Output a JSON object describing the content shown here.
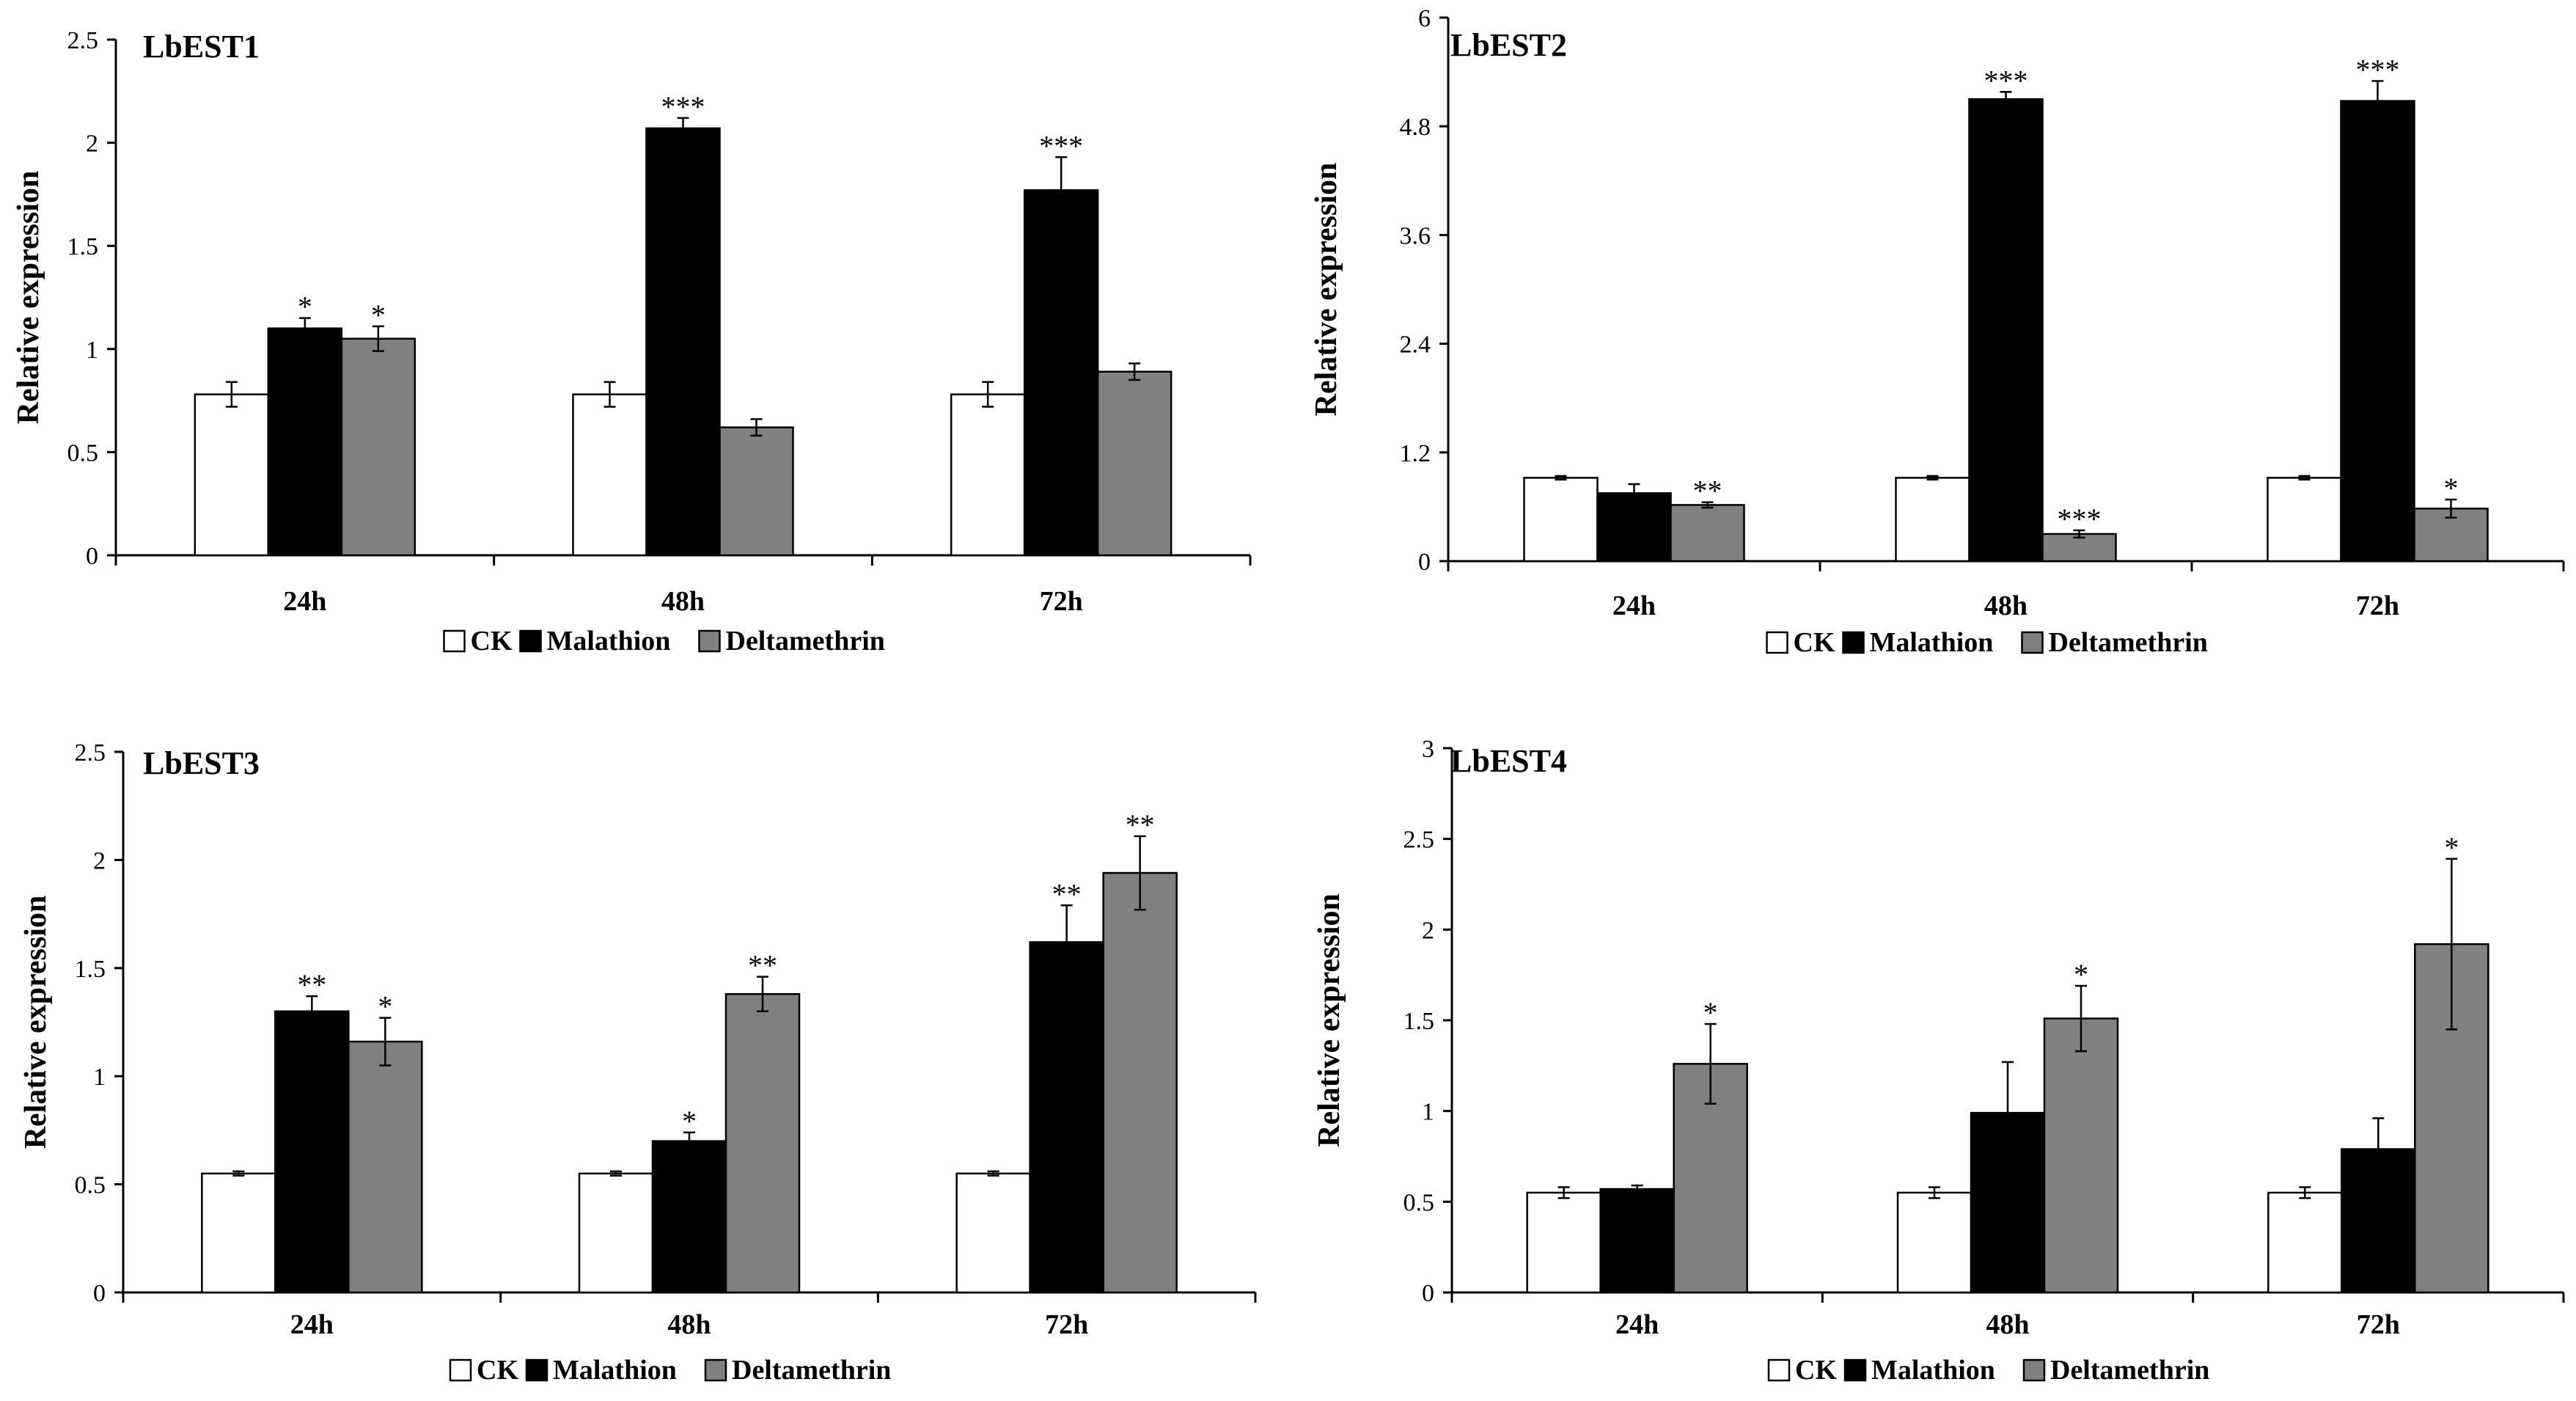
{
  "chart_data": [
    {
      "type": "bar",
      "title": "LbEST1",
      "ylabel": "Relative expression",
      "xlabel": "",
      "categories": [
        "24h",
        "48h",
        "72h"
      ],
      "ylim": [
        0,
        2.5
      ],
      "yticks": [
        "0",
        "0.5",
        "1",
        "1.5",
        "2",
        "2.5"
      ],
      "legend_position": "bottom",
      "series": [
        {
          "name": "CK",
          "color": "#ffffff",
          "values": [
            0.78,
            0.78,
            0.78
          ],
          "errors": [
            0.06,
            0.06,
            0.06
          ],
          "sig": [
            "",
            "",
            ""
          ]
        },
        {
          "name": "Malathion",
          "color": "#000000",
          "values": [
            1.1,
            2.07,
            1.77
          ],
          "errors": [
            0.05,
            0.05,
            0.16
          ],
          "sig": [
            "*",
            "***",
            "***"
          ]
        },
        {
          "name": "Deltamethrin",
          "color": "#808080",
          "values": [
            1.05,
            0.62,
            0.89
          ],
          "errors": [
            0.06,
            0.04,
            0.04
          ],
          "sig": [
            "*",
            "",
            ""
          ]
        }
      ]
    },
    {
      "type": "bar",
      "title": "LbEST2",
      "ylabel": "Relative expression",
      "xlabel": "",
      "categories": [
        "24h",
        "48h",
        "72h"
      ],
      "ylim": [
        0,
        6
      ],
      "yticks": [
        "0",
        "1.2",
        "2.4",
        "3.6",
        "4.8",
        "6"
      ],
      "legend_position": "bottom",
      "series": [
        {
          "name": "CK",
          "color": "#ffffff",
          "values": [
            0.92,
            0.92,
            0.92
          ],
          "errors": [
            0.02,
            0.02,
            0.02
          ],
          "sig": [
            "",
            "",
            ""
          ]
        },
        {
          "name": "Malathion",
          "color": "#000000",
          "values": [
            0.75,
            5.1,
            5.08
          ],
          "errors": [
            0.1,
            0.08,
            0.22
          ],
          "sig": [
            "",
            "***",
            "***"
          ]
        },
        {
          "name": "Deltamethrin",
          "color": "#808080",
          "values": [
            0.62,
            0.3,
            0.58
          ],
          "errors": [
            0.03,
            0.04,
            0.1
          ],
          "sig": [
            "**",
            "***",
            "*"
          ]
        }
      ]
    },
    {
      "type": "bar",
      "title": "LbEST3",
      "ylabel": "Relative expression",
      "xlabel": "",
      "categories": [
        "24h",
        "48h",
        "72h"
      ],
      "ylim": [
        0,
        2.5
      ],
      "yticks": [
        "0",
        "0.5",
        "1",
        "1.5",
        "2",
        "2.5"
      ],
      "legend_position": "bottom",
      "series": [
        {
          "name": "CK",
          "color": "#ffffff",
          "values": [
            0.55,
            0.55,
            0.55
          ],
          "errors": [
            0.01,
            0.01,
            0.01
          ],
          "sig": [
            "",
            "",
            ""
          ]
        },
        {
          "name": "Malathion",
          "color": "#000000",
          "values": [
            1.3,
            0.7,
            1.62
          ],
          "errors": [
            0.07,
            0.04,
            0.17
          ],
          "sig": [
            "**",
            "*",
            "**"
          ]
        },
        {
          "name": "Deltamethrin",
          "color": "#808080",
          "values": [
            1.16,
            1.38,
            1.94
          ],
          "errors": [
            0.11,
            0.08,
            0.17
          ],
          "sig": [
            "*",
            "**",
            "**"
          ]
        }
      ]
    },
    {
      "type": "bar",
      "title": "LbEST4",
      "ylabel": "Relative expression",
      "xlabel": "",
      "categories": [
        "24h",
        "48h",
        "72h"
      ],
      "ylim": [
        0,
        3
      ],
      "yticks": [
        "0",
        "0.5",
        "1",
        "1.5",
        "2",
        "2.5",
        "3"
      ],
      "legend_position": "bottom",
      "series": [
        {
          "name": "CK",
          "color": "#ffffff",
          "values": [
            0.55,
            0.55,
            0.55
          ],
          "errors": [
            0.03,
            0.03,
            0.03
          ],
          "sig": [
            "",
            "",
            ""
          ]
        },
        {
          "name": "Malathion",
          "color": "#000000",
          "values": [
            0.57,
            0.99,
            0.79
          ],
          "errors": [
            0.02,
            0.28,
            0.17
          ],
          "sig": [
            "",
            "",
            ""
          ]
        },
        {
          "name": "Deltamethrin",
          "color": "#808080",
          "values": [
            1.26,
            1.51,
            1.92
          ],
          "errors": [
            0.22,
            0.18,
            0.47
          ],
          "sig": [
            "*",
            "*",
            "*"
          ]
        }
      ]
    }
  ]
}
